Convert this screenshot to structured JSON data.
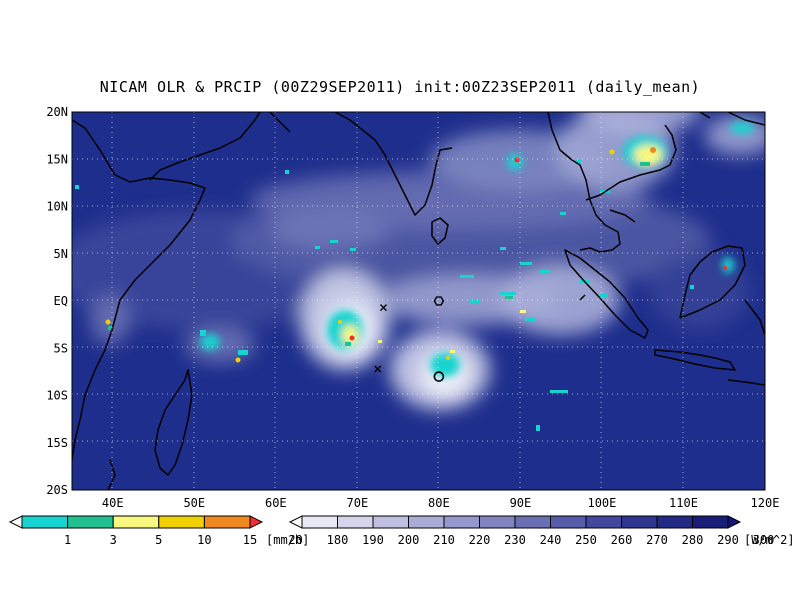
{
  "title": "NICAM OLR & PRCIP (00Z29SEP2011) init:00Z23SEP2011 (daily_mean)",
  "map": {
    "lat_labels": [
      "20N",
      "15N",
      "10N",
      "5N",
      "EQ",
      "5S",
      "10S",
      "15S",
      "20S"
    ],
    "lon_labels": [
      "40E",
      "50E",
      "60E",
      "70E",
      "80E",
      "90E",
      "100E",
      "110E",
      "120E"
    ],
    "lon_range": [
      35,
      120
    ],
    "lat_range": [
      -20,
      20
    ],
    "ocean_color": "#1e2e8c",
    "coast_color": "#000000"
  },
  "precip_legend": {
    "ticks": [
      "1",
      "3",
      "5",
      "10",
      "15",
      "20"
    ],
    "unit": "[mm/h]",
    "colors": [
      "#ffffff",
      "#18d4d0",
      "#20c090",
      "#f8f880",
      "#f0d000",
      "#f08820",
      "#f03030"
    ]
  },
  "olr_legend": {
    "ticks": [
      "180",
      "190",
      "200",
      "210",
      "220",
      "230",
      "240",
      "250",
      "260",
      "270",
      "280",
      "290",
      "300"
    ],
    "unit": "[W/m^2]",
    "colors": [
      "#ffffff",
      "#e8e8f4",
      "#d4d4ea",
      "#bfc0e0",
      "#aaacd6",
      "#9598cc",
      "#8084c0",
      "#6b70b4",
      "#565ca8",
      "#42489c",
      "#2e3690",
      "#222a84",
      "#181e78",
      "#10147c"
    ]
  },
  "markers": [
    {
      "symbol": "x",
      "lon": 73.2,
      "lat": -0.7
    },
    {
      "symbol": "x",
      "lon": 72.5,
      "lat": -7.2
    },
    {
      "symbol": "hexagon",
      "lon": 80,
      "lat": 0
    },
    {
      "symbol": "circle",
      "lon": 80,
      "lat": -8
    }
  ]
}
